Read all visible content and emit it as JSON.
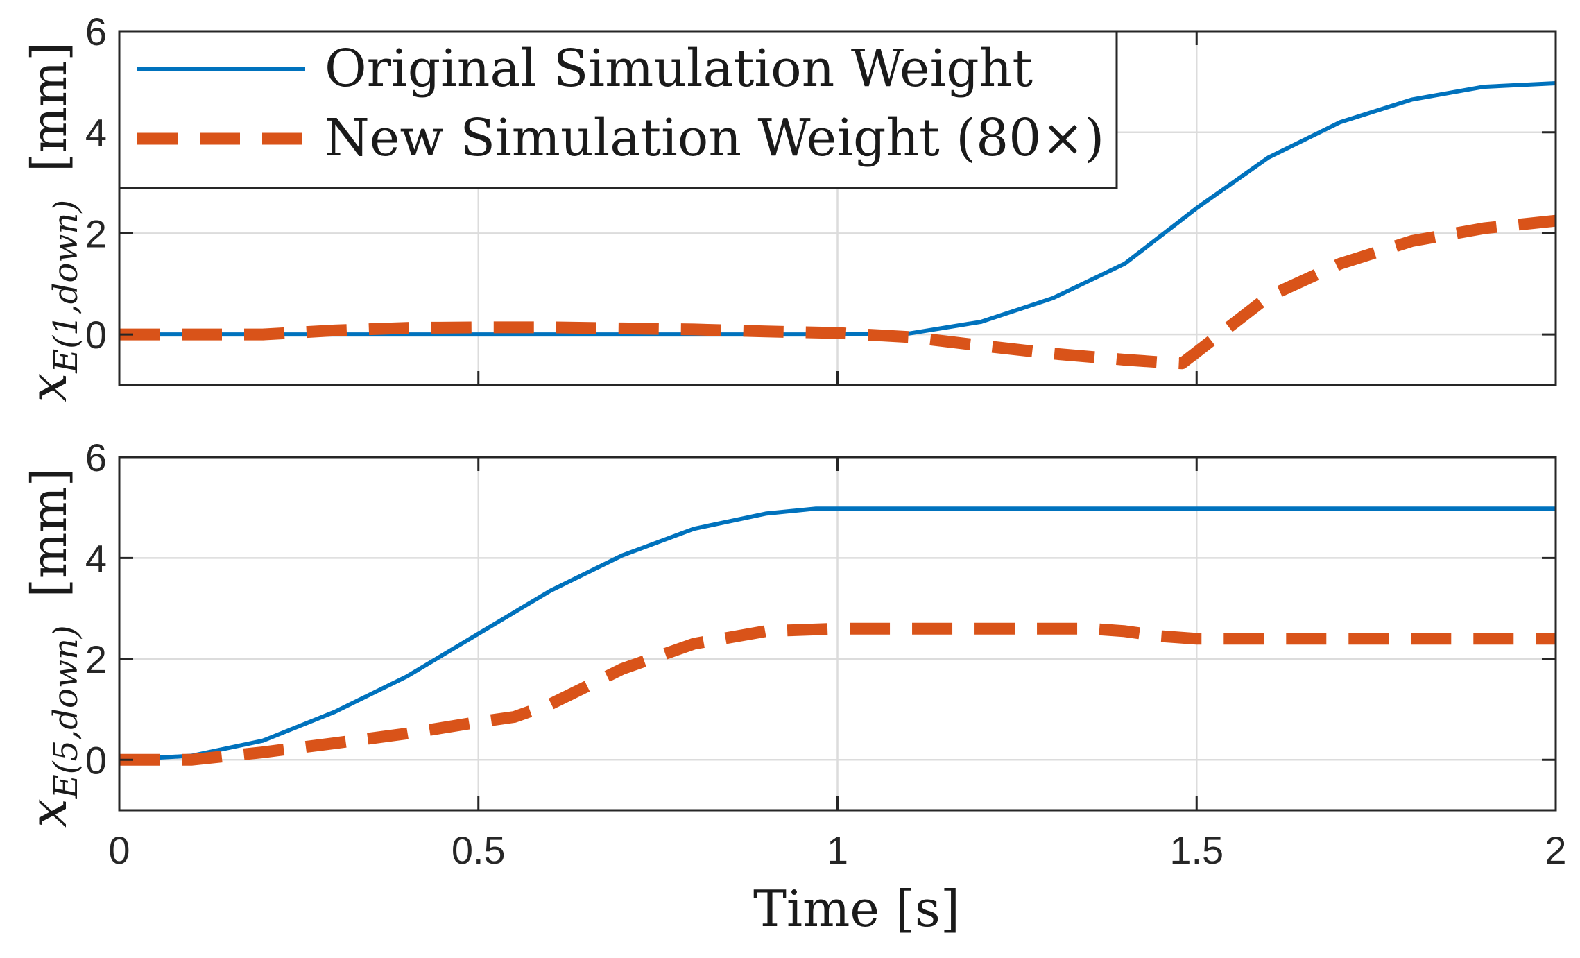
{
  "chart_data": {
    "type": "line",
    "xlabel": "Time [s]",
    "xlim": [
      0,
      2
    ],
    "xticks": [
      0,
      0.5,
      1,
      1.5,
      2
    ],
    "xtick_labels": [
      "0",
      "0.5",
      "1",
      "1.5",
      "2"
    ],
    "grid": true,
    "legend_position": "top-left of upper panel",
    "colors": {
      "original": "#0072BD",
      "new": "#D95319",
      "axis": "#262626",
      "grid": "#dcdcdc"
    },
    "legend": [
      {
        "label": "Original Simulation Weight",
        "style": "solid"
      },
      {
        "label": "New Simulation Weight (80×)",
        "style": "dashed"
      }
    ],
    "panels": [
      {
        "id": "upper",
        "ylabel_var": "x",
        "ylabel_sub": "E(1,down)",
        "ylabel_unit": "[mm]",
        "ylim": [
          -1,
          6
        ],
        "yticks": [
          0,
          2,
          4,
          6
        ],
        "ytick_labels": [
          "0",
          "2",
          "4",
          "6"
        ],
        "series": [
          {
            "name": "Original Simulation Weight",
            "x": [
              0,
              0.5,
              1.0,
              1.1,
              1.2,
              1.3,
              1.4,
              1.5,
              1.6,
              1.7,
              1.8,
              1.9,
              2.0
            ],
            "y": [
              0,
              0,
              0,
              0.02,
              0.25,
              0.72,
              1.4,
              2.5,
              3.5,
              4.2,
              4.65,
              4.9,
              4.97
            ]
          },
          {
            "name": "New Simulation Weight (80×)",
            "x": [
              0,
              0.2,
              0.3,
              0.4,
              0.5,
              0.6,
              0.7,
              0.8,
              0.9,
              1.0,
              1.1,
              1.2,
              1.3,
              1.4,
              1.45,
              1.48,
              1.5,
              1.55,
              1.6,
              1.7,
              1.8,
              1.9,
              2.0
            ],
            "y": [
              0,
              0,
              0.08,
              0.13,
              0.14,
              0.14,
              0.12,
              0.1,
              0.06,
              0.03,
              -0.05,
              -0.22,
              -0.38,
              -0.5,
              -0.55,
              -0.57,
              -0.35,
              0.2,
              0.75,
              1.4,
              1.85,
              2.1,
              2.25
            ]
          }
        ]
      },
      {
        "id": "lower",
        "ylabel_var": "x",
        "ylabel_sub": "E(5,down)",
        "ylabel_unit": "[mm]",
        "ylim": [
          -1,
          6
        ],
        "yticks": [
          0,
          2,
          4,
          6
        ],
        "ytick_labels": [
          "0",
          "2",
          "4",
          "6"
        ],
        "series": [
          {
            "name": "Original Simulation Weight",
            "x": [
              0,
              0.1,
              0.2,
              0.3,
              0.4,
              0.5,
              0.6,
              0.7,
              0.8,
              0.9,
              0.97,
              1.0,
              1.5,
              2.0
            ],
            "y": [
              0,
              0.08,
              0.38,
              0.95,
              1.65,
              2.5,
              3.35,
              4.05,
              4.58,
              4.88,
              4.98,
              4.98,
              4.98,
              4.98
            ]
          },
          {
            "name": "New Simulation Weight (80×)",
            "x": [
              0,
              0.1,
              0.2,
              0.3,
              0.4,
              0.5,
              0.55,
              0.6,
              0.7,
              0.8,
              0.9,
              1.0,
              1.1,
              1.2,
              1.35,
              1.4,
              1.45,
              1.5,
              1.6,
              1.8,
              2.0
            ],
            "y": [
              0,
              0,
              0.15,
              0.33,
              0.52,
              0.75,
              0.85,
              1.1,
              1.8,
              2.3,
              2.55,
              2.6,
              2.6,
              2.6,
              2.6,
              2.55,
              2.45,
              2.4,
              2.4,
              2.4,
              2.4
            ]
          }
        ]
      }
    ]
  }
}
